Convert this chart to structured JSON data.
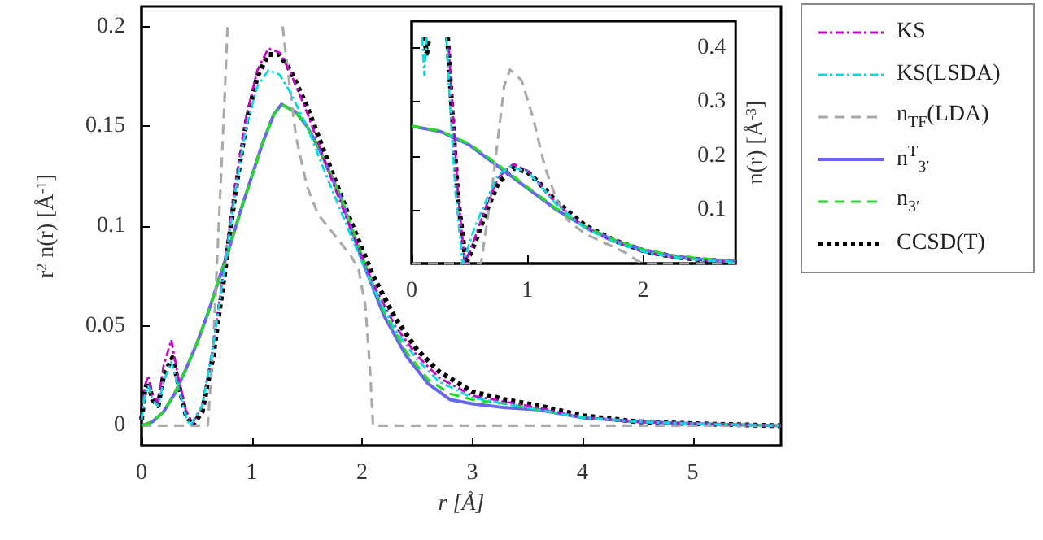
{
  "chart_data": [
    {
      "type": "line",
      "xlabel": "r [Å]",
      "ylabel": "r$^{2}$ n(r) [Å$^{-1}$]",
      "xlim": [
        0,
        5.8
      ],
      "ylim": [
        -0.01,
        0.21
      ],
      "xticks": [
        0,
        1,
        2,
        3,
        4,
        5
      ],
      "yticks": [
        0,
        0.05,
        0.1,
        0.15,
        0.2
      ],
      "grid": false,
      "legend": "right",
      "marker": "none",
      "series": [
        {
          "name": "KS",
          "color": "#cc00cc",
          "line_style": "dashdot",
          "x": [
            0,
            0.03,
            0.06,
            0.1,
            0.15,
            0.2,
            0.27,
            0.33,
            0.4,
            0.46,
            0.55,
            0.65,
            0.75,
            0.85,
            0.95,
            1.05,
            1.15,
            1.25,
            1.35,
            1.5,
            1.7,
            1.9,
            2.1,
            2.3,
            2.5,
            2.7,
            3.0,
            3.3,
            3.6,
            4.0,
            4.5,
            5.0,
            5.8
          ],
          "values": [
            0.003,
            0.02,
            0.025,
            0.015,
            0.012,
            0.03,
            0.043,
            0.025,
            0.008,
            0.001,
            0.01,
            0.04,
            0.08,
            0.12,
            0.155,
            0.178,
            0.189,
            0.187,
            0.177,
            0.157,
            0.127,
            0.098,
            0.071,
            0.05,
            0.035,
            0.024,
            0.015,
            0.012,
            0.009,
            0.004,
            0.002,
            0.001,
            0
          ]
        },
        {
          "name": "KS(LSDA)",
          "color": "#00dddd",
          "line_style": "dashdot",
          "x": [
            0,
            0.03,
            0.06,
            0.1,
            0.15,
            0.2,
            0.27,
            0.33,
            0.4,
            0.44,
            0.55,
            0.65,
            0.75,
            0.85,
            0.95,
            1.05,
            1.15,
            1.25,
            1.35,
            1.5,
            1.7,
            1.9,
            2.1,
            2.3,
            2.5,
            2.7,
            3.0,
            3.3,
            3.6,
            4.0,
            4.5,
            5.0,
            5.8
          ],
          "values": [
            0.003,
            0.015,
            0.02,
            0.013,
            0.01,
            0.022,
            0.032,
            0.02,
            0.005,
            0,
            0.01,
            0.04,
            0.078,
            0.117,
            0.15,
            0.17,
            0.178,
            0.176,
            0.167,
            0.15,
            0.122,
            0.095,
            0.069,
            0.048,
            0.033,
            0.022,
            0.014,
            0.011,
            0.008,
            0.004,
            0.002,
            0.001,
            0
          ]
        },
        {
          "name": "n$_{TF}$(LDA)",
          "color": "#aaaaaa",
          "line_style": "dashed",
          "x": [
            0,
            0.6,
            0.65,
            0.7,
            0.75,
            0.78,
            1.0,
            1.28,
            1.3,
            1.4,
            1.5,
            1.6,
            1.7,
            1.8,
            1.9,
            1.97,
            2.03,
            2.07,
            2.1,
            5.8
          ],
          "values": [
            0,
            0,
            0.04,
            0.1,
            0.16,
            0.2,
            null,
            0.2,
            0.19,
            0.145,
            0.12,
            0.106,
            0.099,
            0.092,
            0.085,
            0.078,
            0.06,
            0.03,
            0,
            0
          ]
        },
        {
          "name": "n$^{T}$$_{3′}$",
          "color": "#6666ee",
          "line_style": "solid",
          "x": [
            0,
            0.1,
            0.2,
            0.3,
            0.4,
            0.5,
            0.6,
            0.7,
            0.8,
            0.9,
            1.0,
            1.1,
            1.2,
            1.27,
            1.4,
            1.5,
            1.6,
            1.8,
            2.0,
            2.2,
            2.4,
            2.6,
            2.8,
            3.0,
            3.3,
            3.6,
            4.0,
            4.5,
            5.0,
            5.8
          ],
          "values": [
            0,
            0.002,
            0.007,
            0.016,
            0.028,
            0.041,
            0.056,
            0.073,
            0.09,
            0.108,
            0.125,
            0.142,
            0.156,
            0.161,
            0.157,
            0.15,
            0.14,
            0.115,
            0.083,
            0.055,
            0.035,
            0.021,
            0.013,
            0.011,
            0.009,
            0.008,
            0.004,
            0.002,
            0.001,
            0
          ]
        },
        {
          "name": "n$_{3′}$",
          "color": "#22dd22",
          "line_style": "dashed",
          "x": [
            0,
            0.1,
            0.2,
            0.3,
            0.4,
            0.5,
            0.6,
            0.7,
            0.8,
            0.9,
            1.0,
            1.1,
            1.2,
            1.27,
            1.4,
            1.5,
            1.6,
            1.8,
            2.0,
            2.2,
            2.4,
            2.6,
            2.8,
            3.0,
            3.3,
            3.6,
            4.0,
            4.5,
            5.0,
            5.8
          ],
          "values": [
            0,
            0.002,
            0.007,
            0.016,
            0.028,
            0.041,
            0.056,
            0.073,
            0.09,
            0.108,
            0.125,
            0.142,
            0.156,
            0.161,
            0.157,
            0.15,
            0.14,
            0.116,
            0.085,
            0.057,
            0.037,
            0.023,
            0.016,
            0.013,
            0.011,
            0.008,
            0.004,
            0.002,
            0.001,
            0
          ]
        },
        {
          "name": "CCSD(T)",
          "color": "#000000",
          "line_style": "dotted",
          "x": [
            0,
            0.03,
            0.06,
            0.1,
            0.15,
            0.2,
            0.28,
            0.33,
            0.4,
            0.46,
            0.55,
            0.65,
            0.75,
            0.85,
            0.95,
            1.05,
            1.15,
            1.25,
            1.35,
            1.5,
            1.7,
            1.9,
            2.1,
            2.3,
            2.5,
            2.7,
            3.0,
            3.3,
            3.6,
            4.0,
            4.5,
            5.0,
            5.8
          ],
          "values": [
            0.003,
            0.018,
            0.022,
            0.013,
            0.01,
            0.025,
            0.034,
            0.022,
            0.006,
            0,
            0.007,
            0.035,
            0.075,
            0.117,
            0.152,
            0.175,
            0.186,
            0.186,
            0.178,
            0.16,
            0.131,
            0.102,
            0.075,
            0.054,
            0.038,
            0.027,
            0.017,
            0.013,
            0.01,
            0.005,
            0.002,
            0.001,
            0
          ]
        }
      ]
    },
    {
      "type": "line",
      "ylabel": "n(r) [Å$^{-3}$]",
      "xlim": [
        0,
        2.8
      ],
      "ylim": [
        0,
        0.45
      ],
      "xticks": [
        0,
        1,
        2
      ],
      "yticks": [
        0.1,
        0.2,
        0.3,
        0.4
      ],
      "grid": false,
      "marker": "none",
      "series": [
        {
          "color": "#cc00cc",
          "line_style": "dashdot",
          "x": [
            0.32,
            0.35,
            0.4,
            0.46,
            0.55,
            0.65,
            0.75,
            0.88,
            1.0,
            1.1,
            1.25,
            1.5,
            1.75,
            2.0,
            2.25,
            2.5,
            2.8
          ],
          "values": [
            0.4,
            0.3,
            0.13,
            0,
            0.05,
            0.11,
            0.16,
            0.185,
            0.172,
            0.15,
            0.112,
            0.066,
            0.04,
            0.022,
            0.012,
            0.006,
            0.003
          ]
        },
        {
          "color": "#00dddd",
          "line_style": "dashdot",
          "x": [
            0.09,
            0.11,
            0.13,
            0.2,
            0.3,
            0.33,
            0.38,
            0.44,
            0.55,
            0.65,
            0.75,
            0.85,
            1.0,
            1.1,
            1.25,
            1.5,
            1.75,
            2.0,
            2.25,
            2.5,
            2.8
          ],
          "values": [
            0.42,
            0.35,
            0.42,
            null,
            0.42,
            0.3,
            0.13,
            0,
            0.07,
            0.12,
            0.165,
            0.18,
            0.17,
            0.148,
            0.11,
            0.065,
            0.04,
            0.022,
            0.012,
            0.006,
            0.003
          ]
        },
        {
          "color": "#aaaaaa",
          "line_style": "dashed",
          "x": [
            0,
            0.6,
            0.7,
            0.8,
            0.85,
            0.95,
            1.05,
            1.15,
            1.25,
            1.35,
            1.5,
            1.7,
            1.85,
            1.95,
            2.0,
            2.8
          ],
          "values": [
            0,
            0,
            0.15,
            0.33,
            0.36,
            0.34,
            0.27,
            0.18,
            0.12,
            0.08,
            0.055,
            0.035,
            0.02,
            0.005,
            0,
            0
          ]
        },
        {
          "color": "#6666ee",
          "line_style": "solid",
          "x": [
            0,
            0.25,
            0.5,
            0.75,
            1.0,
            1.25,
            1.5,
            1.75,
            2.0,
            2.25,
            2.5,
            2.8
          ],
          "values": [
            0.255,
            0.245,
            0.22,
            0.18,
            0.14,
            0.1,
            0.068,
            0.043,
            0.025,
            0.014,
            0.008,
            0.004
          ]
        },
        {
          "color": "#22dd22",
          "line_style": "dashed",
          "x": [
            0,
            0.25,
            0.5,
            0.75,
            1.0,
            1.25,
            1.5,
            1.75,
            2.0,
            2.25,
            2.5,
            2.8
          ],
          "values": [
            0.255,
            0.246,
            0.222,
            0.183,
            0.142,
            0.102,
            0.068,
            0.044,
            0.026,
            0.015,
            0.009,
            0.004
          ]
        },
        {
          "color": "#000000",
          "line_style": "dotted",
          "x": [
            0.11,
            0.13,
            0.15,
            0.2,
            0.31,
            0.35,
            0.4,
            0.47,
            0.55,
            0.65,
            0.75,
            0.88,
            1.0,
            1.1,
            1.25,
            1.5,
            1.75,
            2.0,
            2.25,
            2.5,
            2.8
          ],
          "values": [
            0.42,
            0.39,
            0.42,
            null,
            0.42,
            0.28,
            0.12,
            0,
            0.04,
            0.1,
            0.15,
            0.177,
            0.17,
            0.15,
            0.115,
            0.07,
            0.043,
            0.024,
            0.013,
            0.007,
            0.003
          ]
        }
      ]
    }
  ]
}
